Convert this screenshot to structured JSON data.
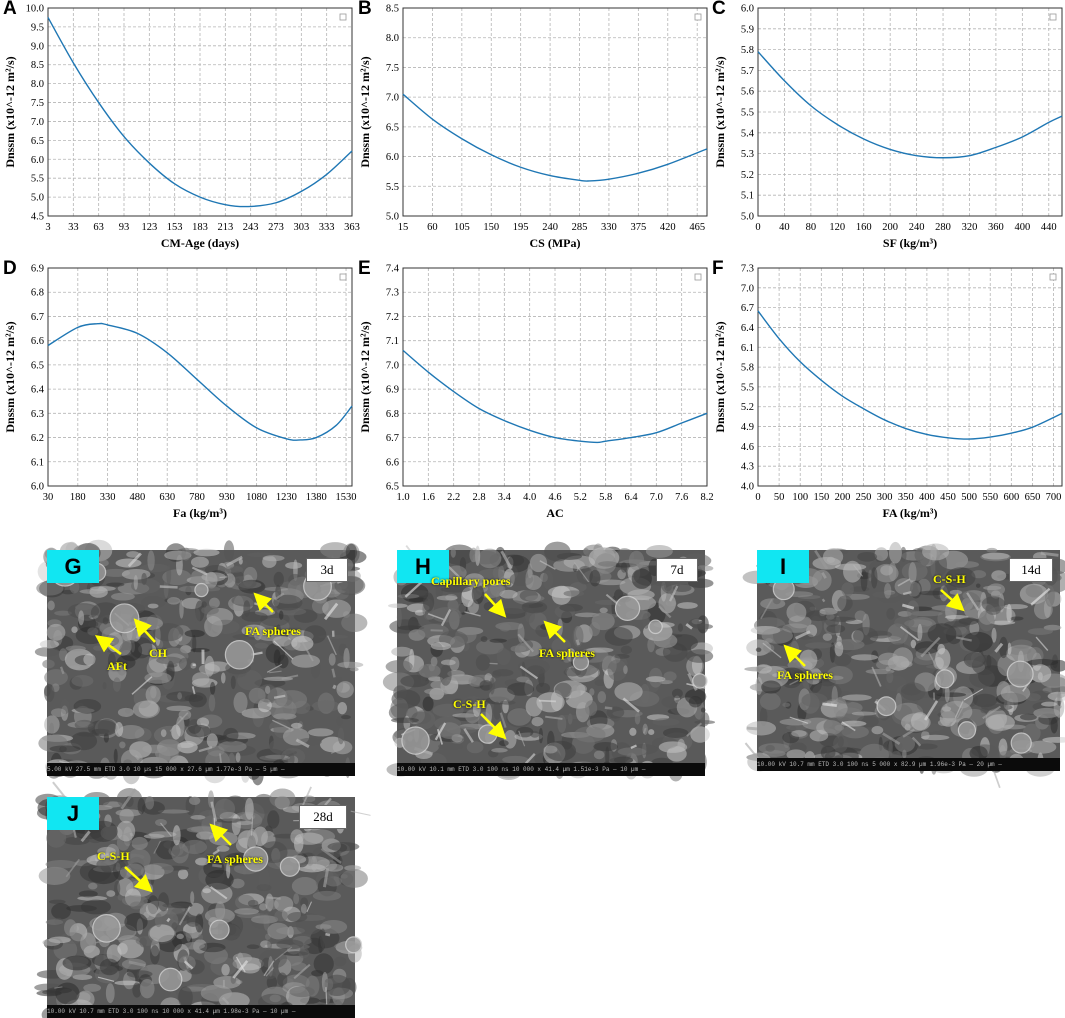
{
  "chart_data": [
    {
      "panel": "A",
      "type": "line",
      "xlabel": "CM-Age (days)",
      "ylabel": "Dnssm (x10^-12 m²/s)",
      "xlim": [
        3,
        363
      ],
      "ylim": [
        4.5,
        10.0
      ],
      "xticks": [
        3,
        33,
        63,
        93,
        123,
        153,
        183,
        213,
        243,
        273,
        303,
        333,
        363
      ],
      "yticks": [
        4.5,
        5.0,
        5.5,
        6.0,
        6.5,
        7.0,
        7.5,
        8.0,
        8.5,
        9.0,
        9.5,
        10.0
      ],
      "ytick_decimals": 1,
      "grid": true,
      "series": [
        {
          "x": [
            3,
            33,
            63,
            93,
            123,
            153,
            183,
            213,
            240,
            273,
            303,
            333,
            363
          ],
          "y": [
            9.75,
            8.55,
            7.5,
            6.6,
            5.9,
            5.35,
            5.0,
            4.8,
            4.75,
            4.85,
            5.15,
            5.6,
            6.22
          ]
        }
      ]
    },
    {
      "panel": "B",
      "type": "line",
      "xlabel": "CS (MPa)",
      "ylabel": "Dnssm (x10^-12 m²/s)",
      "xlim": [
        15,
        480
      ],
      "ylim": [
        5.0,
        8.5
      ],
      "xticks": [
        15,
        60,
        105,
        150,
        195,
        240,
        285,
        330,
        375,
        420,
        465
      ],
      "yticks": [
        5.0,
        5.5,
        6.0,
        6.5,
        7.0,
        7.5,
        8.0,
        8.5
      ],
      "ytick_decimals": 1,
      "grid": true,
      "series": [
        {
          "x": [
            15,
            60,
            105,
            150,
            195,
            240,
            285,
            300,
            330,
            375,
            420,
            480
          ],
          "y": [
            7.05,
            6.63,
            6.3,
            6.03,
            5.82,
            5.68,
            5.6,
            5.59,
            5.62,
            5.72,
            5.87,
            6.13
          ]
        }
      ]
    },
    {
      "panel": "C",
      "type": "line",
      "xlabel": "SF (kg/m³)",
      "ylabel": "Dnssm (x10^-12 m²/s)",
      "xlim": [
        0,
        460
      ],
      "ylim": [
        5.0,
        6.0
      ],
      "xticks": [
        0,
        40,
        80,
        120,
        160,
        200,
        240,
        280,
        320,
        360,
        400,
        440
      ],
      "yticks": [
        5.0,
        5.1,
        5.2,
        5.3,
        5.4,
        5.5,
        5.6,
        5.7,
        5.8,
        5.9,
        6.0
      ],
      "ytick_decimals": 1,
      "grid": true,
      "series": [
        {
          "x": [
            0,
            40,
            80,
            120,
            160,
            200,
            240,
            280,
            320,
            360,
            400,
            440,
            460
          ],
          "y": [
            5.79,
            5.65,
            5.53,
            5.44,
            5.37,
            5.32,
            5.29,
            5.28,
            5.29,
            5.33,
            5.38,
            5.45,
            5.48
          ]
        }
      ]
    },
    {
      "panel": "D",
      "type": "line",
      "xlabel": "Fa (kg/m³)",
      "ylabel": "Dnssm (x10^-12 m²/s)",
      "xlim": [
        30,
        1560
      ],
      "ylim": [
        6.0,
        6.9
      ],
      "xticks": [
        30,
        180,
        330,
        480,
        630,
        780,
        930,
        1080,
        1230,
        1380,
        1530
      ],
      "yticks": [
        6.0,
        6.1,
        6.2,
        6.3,
        6.4,
        6.5,
        6.6,
        6.7,
        6.8,
        6.9
      ],
      "ytick_decimals": 1,
      "grid": true,
      "series": [
        {
          "x": [
            30,
            180,
            280,
            330,
            480,
            630,
            780,
            930,
            1080,
            1230,
            1300,
            1380,
            1480,
            1560
          ],
          "y": [
            6.58,
            6.655,
            6.67,
            6.665,
            6.63,
            6.55,
            6.44,
            6.33,
            6.24,
            6.195,
            6.19,
            6.2,
            6.25,
            6.33
          ]
        }
      ]
    },
    {
      "panel": "E",
      "type": "line",
      "xlabel": "AC",
      "ylabel": "Dnssm (x10^-12 m²/s)",
      "xlim": [
        1.0,
        8.2
      ],
      "ylim": [
        6.5,
        7.4
      ],
      "xticks": [
        1.0,
        1.6,
        2.2,
        2.8,
        3.4,
        4.0,
        4.6,
        5.2,
        5.8,
        6.4,
        7.0,
        7.6,
        8.2
      ],
      "yticks": [
        6.5,
        6.6,
        6.7,
        6.8,
        6.9,
        7.0,
        7.1,
        7.2,
        7.3,
        7.4
      ],
      "ytick_decimals": 1,
      "grid": true,
      "series": [
        {
          "x": [
            1.0,
            1.6,
            2.2,
            2.8,
            3.4,
            4.0,
            4.6,
            5.2,
            5.6,
            5.8,
            6.4,
            7.0,
            7.6,
            8.2
          ],
          "y": [
            7.06,
            6.97,
            6.89,
            6.82,
            6.77,
            6.73,
            6.7,
            6.685,
            6.68,
            6.685,
            6.7,
            6.72,
            6.76,
            6.8
          ]
        }
      ]
    },
    {
      "panel": "F",
      "type": "line",
      "xlabel": "FA (kg/m³)",
      "ylabel": "Dnssm (x10^-12 m²/s)",
      "xlim": [
        0,
        720
      ],
      "ylim": [
        4.0,
        7.3
      ],
      "xticks": [
        0,
        50,
        100,
        150,
        200,
        250,
        300,
        350,
        400,
        450,
        500,
        550,
        600,
        650,
        700
      ],
      "yticks": [
        4.0,
        4.3,
        4.6,
        4.9,
        5.2,
        5.5,
        5.8,
        6.1,
        6.4,
        6.7,
        7.0,
        7.3
      ],
      "ytick_decimals": 1,
      "grid": true,
      "series": [
        {
          "x": [
            0,
            50,
            100,
            150,
            200,
            250,
            300,
            350,
            400,
            450,
            500,
            550,
            600,
            650,
            720
          ],
          "y": [
            6.65,
            6.23,
            5.88,
            5.6,
            5.36,
            5.17,
            5.0,
            4.87,
            4.78,
            4.73,
            4.71,
            4.74,
            4.8,
            4.89,
            5.1
          ]
        }
      ]
    }
  ],
  "sem_panels": [
    {
      "letter": "G",
      "age": "3d",
      "labels": [
        "AFt",
        "CH",
        "FA spheres"
      ],
      "bar": "5.00 kV   27.5 mm   ETD   3.0   10 µs   15 000 x   27.6 µm   1.77e-3 Pa                — 5 µm —"
    },
    {
      "letter": "H",
      "age": "7d",
      "labels": [
        "Capillary pores",
        "FA spheres",
        "C-S-H"
      ],
      "bar": "10.00 kV   10.1 mm   ETD   3.0   100 ns   10 000 x   41.4 µm   1.51e-3 Pa                — 10 µm —"
    },
    {
      "letter": "I",
      "age": "14d",
      "labels": [
        "C-S-H",
        "FA spheres"
      ],
      "bar": "10.00 kV   10.7 mm   ETD   3.0   100 ns   5 000 x   82.9 µm   1.96e-3 Pa                — 20 µm —"
    },
    {
      "letter": "J",
      "age": "28d",
      "labels": [
        "C-S-H",
        "FA spheres"
      ],
      "bar": "10.00 kV   10.7 mm   ETD   3.0   100 ns   10 000 x   41.4 µm   1.98e-3 Pa                — 10 µm —"
    }
  ],
  "colors": {
    "line": "#1f77b4",
    "grid": "#b5b5b5",
    "sem_label": "#ffff00",
    "sem_letter_bg": "#11e6f2"
  }
}
